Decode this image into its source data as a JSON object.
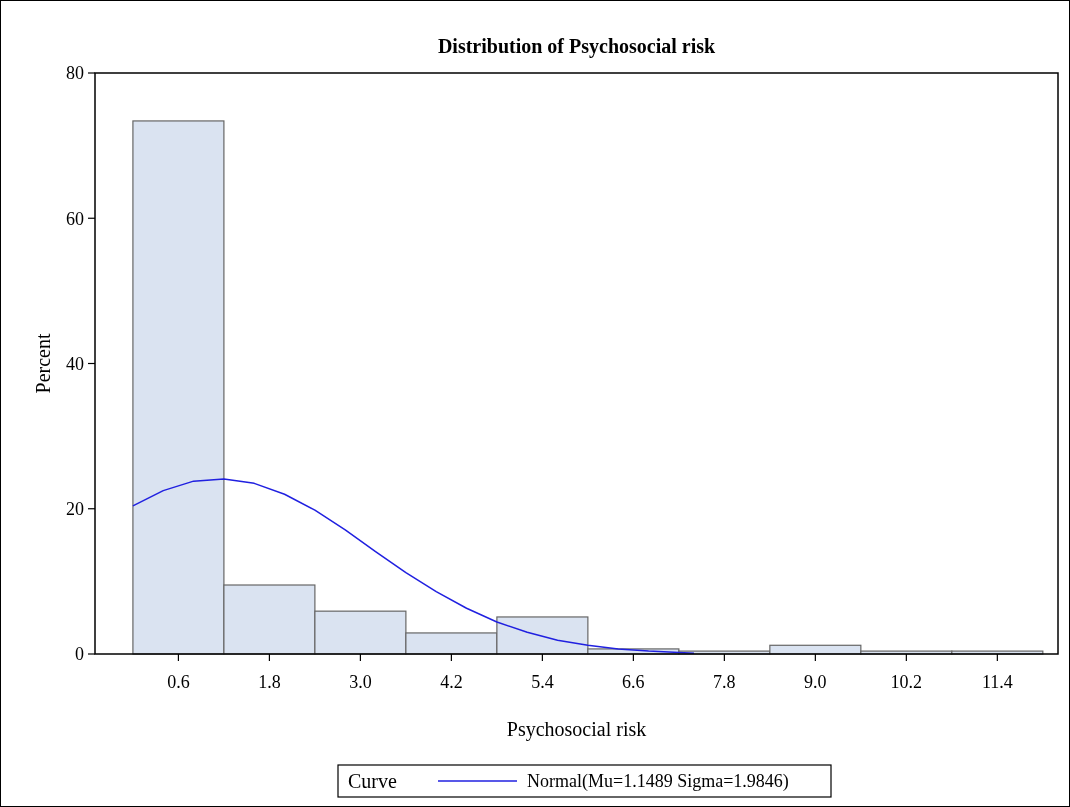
{
  "chart_data": {
    "type": "histogram",
    "title": "Distribution of Psychosocial risk",
    "xlabel": "Psychosocial risk",
    "ylabel": "Percent",
    "legend_title": "Curve",
    "legend": "bottom",
    "grid": false,
    "bins": [
      0,
      1.2,
      2.4,
      3.6,
      4.8,
      6.0,
      7.2,
      8.4,
      9.6,
      10.8,
      12.0
    ],
    "values": [
      73.4,
      9.5,
      5.9,
      2.9,
      5.1,
      0.7,
      0.4,
      1.2,
      0.4,
      0.4
    ],
    "color": "#dae3f1",
    "xlim": [
      -0.5,
      12.2
    ],
    "xticks": [
      {
        "value": 0.6,
        "label": "0.6"
      },
      {
        "value": 1.8,
        "label": "1.8"
      },
      {
        "value": 3.0,
        "label": "3.0"
      },
      {
        "value": 4.2,
        "label": "4.2"
      },
      {
        "value": 5.4,
        "label": "5.4"
      },
      {
        "value": 6.6,
        "label": "6.6"
      },
      {
        "value": 7.8,
        "label": "7.8"
      },
      {
        "value": 9.0,
        "label": "9.0"
      },
      {
        "value": 10.2,
        "label": "10.2"
      },
      {
        "value": 11.4,
        "label": "11.4"
      }
    ],
    "ylim": [
      0,
      80
    ],
    "yticks": [
      0,
      20,
      40,
      60,
      80
    ],
    "series": [
      {
        "type": "line",
        "name": "Normal(Mu=1.1489 Sigma=1.9846)",
        "color": "#2020e0",
        "x": [
          0,
          0.4,
          0.8,
          1.2,
          1.6,
          2.0,
          2.4,
          2.8,
          3.2,
          3.6,
          4.0,
          4.4,
          4.8,
          5.2,
          5.6,
          6.0,
          6.4,
          6.8,
          7.2,
          7.4
        ],
        "values": [
          20.4,
          22.5,
          23.8,
          24.1,
          23.5,
          22.0,
          19.8,
          17.1,
          14.1,
          11.2,
          8.6,
          6.3,
          4.4,
          3.0,
          1.9,
          1.2,
          0.7,
          0.4,
          0.2,
          0.1
        ]
      }
    ]
  }
}
